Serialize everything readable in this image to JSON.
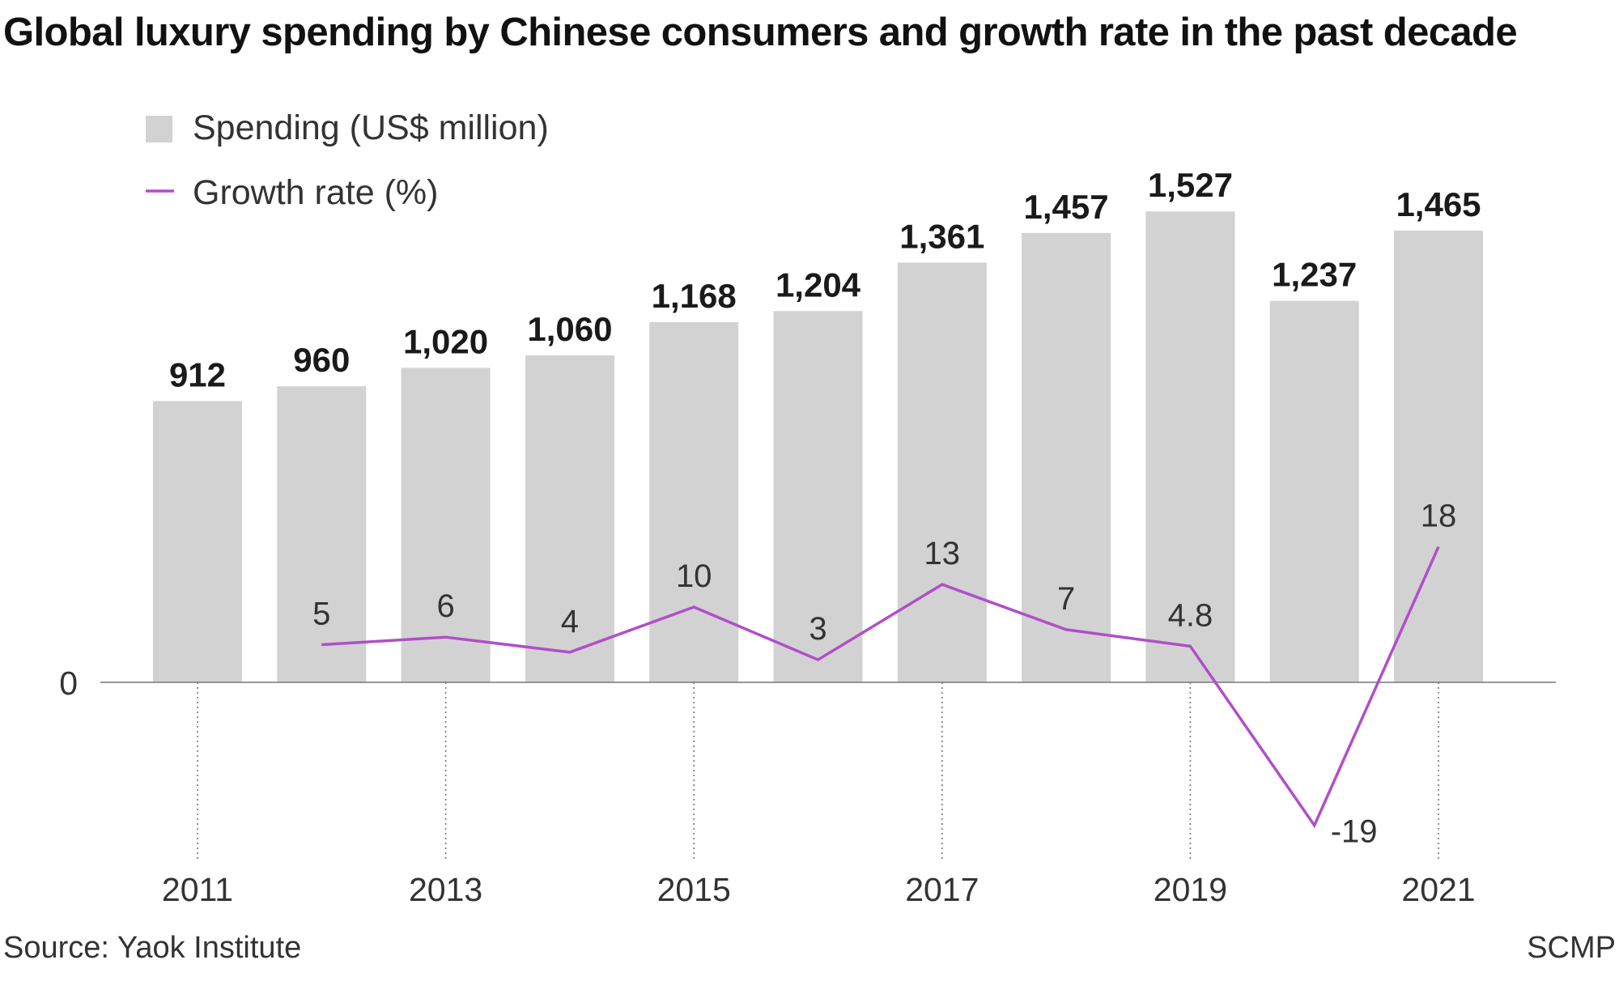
{
  "title": "Global luxury spending by Chinese consumers and growth rate in the past decade",
  "source": "Source: Yaok Institute",
  "credit": "SCMP",
  "colors": {
    "bar": "#d2d2d3",
    "line": "#b04fc8",
    "axis": "#777777",
    "text": "#333333"
  },
  "chart_data": {
    "type": "bar",
    "categories": [
      "2011",
      "2012",
      "2013",
      "2014",
      "2015",
      "2016",
      "2017",
      "2018",
      "2019",
      "2020",
      "2021"
    ],
    "x_tick_labels": [
      "2011",
      "2013",
      "2015",
      "2017",
      "2019",
      "2021"
    ],
    "y_tick_labels": [
      "0"
    ],
    "legend": {
      "placement": "top-left"
    },
    "series": [
      {
        "name": "Spending (US$ million)",
        "type": "bar",
        "values": [
          912,
          960,
          1020,
          1060,
          1168,
          1204,
          1361,
          1457,
          1527,
          1237,
          1465
        ],
        "labels": [
          "912",
          "960",
          "1,020",
          "1,060",
          "1,168",
          "1,204",
          "1,361",
          "1,457",
          "1,527",
          "1,237",
          "1,465"
        ]
      },
      {
        "name": "Growth rate (%)",
        "type": "line",
        "values": [
          null,
          5,
          6,
          4,
          10,
          3,
          13,
          7,
          4.8,
          -19,
          18
        ],
        "labels": [
          "",
          "5",
          "6",
          "4",
          "10",
          "3",
          "13",
          "7",
          "4.8",
          "-19",
          "18"
        ]
      }
    ]
  }
}
